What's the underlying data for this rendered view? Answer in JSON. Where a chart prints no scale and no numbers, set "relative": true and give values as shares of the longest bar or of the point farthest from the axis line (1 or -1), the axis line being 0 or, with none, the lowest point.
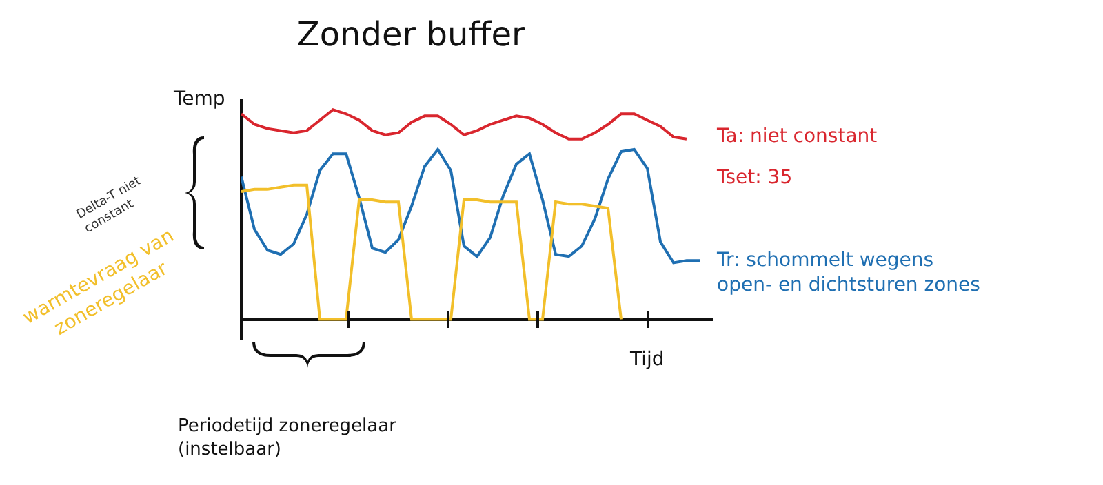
{
  "chart_data": {
    "type": "line",
    "title": "Zonder buffer",
    "xlabel": "Tijd",
    "ylabel": "Temp",
    "relative": true,
    "legend": false,
    "marker": "none",
    "line_style": "solid",
    "categories": [
      null,
      null,
      null,
      null,
      null,
      null,
      null,
      null,
      null,
      null,
      null,
      null,
      null,
      null,
      null,
      null,
      null,
      null,
      null,
      null,
      null,
      null,
      null,
      null,
      null,
      null,
      null,
      null,
      null,
      null,
      null,
      null,
      null,
      null,
      null,
      null,
      null
    ],
    "series": [
      {
        "name": "Ta: niet constant",
        "color": "#d9262e",
        "values": [
          0.98,
          0.93,
          0.91,
          0.9,
          0.89,
          0.9,
          0.95,
          1.0,
          0.98,
          0.95,
          0.9,
          0.88,
          0.89,
          0.94,
          0.97,
          0.97,
          0.93,
          0.88,
          0.9,
          0.93,
          0.95,
          0.97,
          0.96,
          0.93,
          0.89,
          0.86,
          0.86,
          0.89,
          0.93,
          0.98,
          0.98,
          0.95,
          0.92,
          0.87,
          0.86,
          null,
          null
        ]
      },
      {
        "name": "Tr: schommelt wegens open- en dichtsturen zones",
        "color": "#1f6fb2",
        "values": [
          0.68,
          0.43,
          0.33,
          0.31,
          0.36,
          0.5,
          0.71,
          0.79,
          0.79,
          0.58,
          0.34,
          0.32,
          0.38,
          0.54,
          0.73,
          0.81,
          0.71,
          0.35,
          0.3,
          0.39,
          0.59,
          0.74,
          0.79,
          0.57,
          0.31,
          0.3,
          0.35,
          0.48,
          0.67,
          0.8,
          0.81,
          0.72,
          0.37,
          0.27,
          0.28,
          0.28,
          null
        ]
      },
      {
        "name": "warmtevraag van zoneregelaar",
        "color": "#f2bf2a",
        "values": [
          0.61,
          0.62,
          0.62,
          0.63,
          0.64,
          0.64,
          0,
          0,
          0,
          0.57,
          0.57,
          0.56,
          0.56,
          0,
          0,
          0,
          0,
          0.57,
          0.57,
          0.56,
          0.56,
          0.56,
          0,
          0,
          0.56,
          0.55,
          0.55,
          0.54,
          0.53,
          0,
          null,
          null,
          null,
          null,
          null,
          null,
          null
        ]
      }
    ],
    "annotations": [
      "Tset: 35",
      "Delta-T niet constant",
      "Periodetijd zoneregelaar (instelbaar)"
    ]
  }
}
